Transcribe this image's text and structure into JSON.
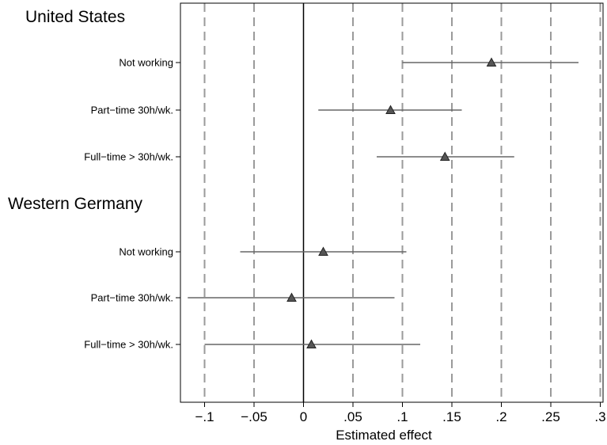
{
  "chart_data": {
    "type": "scatter",
    "xlabel": "Estimated effect",
    "xlim": [
      -0.125,
      0.3
    ],
    "x_ticks": [
      -0.1,
      -0.05,
      0,
      0.05,
      0.1,
      0.15,
      0.2,
      0.25,
      0.3
    ],
    "x_tick_labels": [
      "−.1",
      "−.05",
      "0",
      ".05",
      ".1",
      ".15",
      ".2",
      ".25",
      ".3"
    ],
    "grid": "vertical dashed",
    "zero_line": 0,
    "marker": "triangle",
    "colors": {
      "marker": "#555555",
      "ci_line": "#666666",
      "grid": "#9a9a9a",
      "axis": "#000000"
    },
    "groups": [
      {
        "name": "United States",
        "rows": [
          {
            "label": "Not working",
            "estimate": 0.19,
            "ci_low": 0.1,
            "ci_high": 0.278
          },
          {
            "label": "Part−time   30h/wk.",
            "estimate": 0.088,
            "ci_low": 0.015,
            "ci_high": 0.16
          },
          {
            "label": "Full−time > 30h/wk.",
            "estimate": 0.143,
            "ci_low": 0.074,
            "ci_high": 0.213
          }
        ]
      },
      {
        "name": "Western Germany",
        "rows": [
          {
            "label": "Not working",
            "estimate": 0.02,
            "ci_low": -0.064,
            "ci_high": 0.104
          },
          {
            "label": "Part−time   30h/wk.",
            "estimate": -0.012,
            "ci_low": -0.117,
            "ci_high": 0.092
          },
          {
            "label": "Full−time > 30h/wk.",
            "estimate": 0.008,
            "ci_low": -0.1,
            "ci_high": 0.118
          }
        ]
      }
    ]
  }
}
